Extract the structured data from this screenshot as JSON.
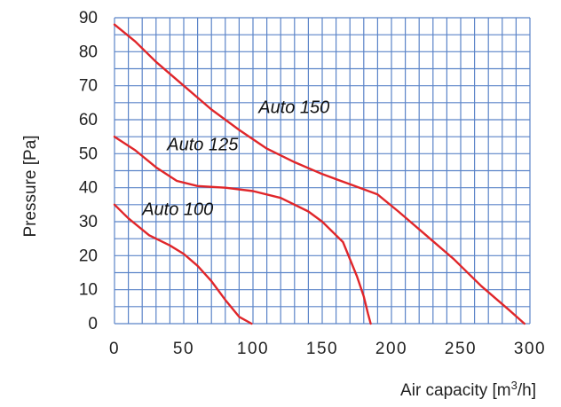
{
  "chart_data": {
    "type": "line",
    "title": "",
    "xlabel_prefix": "Air capacity [m",
    "xlabel_superscript": "3",
    "xlabel_suffix": "/h]",
    "ylabel": "Pressure [Pa]",
    "xlim": [
      0,
      300
    ],
    "ylim": [
      0,
      90
    ],
    "xticks": [
      0,
      50,
      100,
      150,
      200,
      250,
      300
    ],
    "yticks": [
      0,
      10,
      20,
      30,
      40,
      50,
      60,
      70,
      80,
      90
    ],
    "grid": true,
    "grid_minor_x_step": 10,
    "grid_y_step": 5,
    "grid_color": "#5b84c8",
    "line_color": "#e0262a",
    "series": [
      {
        "name": "Auto 100",
        "label_at": [
          20,
          32
        ],
        "points": [
          [
            0,
            35
          ],
          [
            10,
            31
          ],
          [
            25,
            26
          ],
          [
            40,
            23
          ],
          [
            50,
            20.5
          ],
          [
            60,
            17
          ],
          [
            70,
            12.5
          ],
          [
            80,
            7
          ],
          [
            90,
            2
          ],
          [
            99,
            0
          ]
        ]
      },
      {
        "name": "Auto 125",
        "label_at": [
          38,
          51
        ],
        "points": [
          [
            0,
            55
          ],
          [
            15,
            51
          ],
          [
            30,
            46
          ],
          [
            45,
            42
          ],
          [
            60,
            40.5
          ],
          [
            80,
            40
          ],
          [
            100,
            39
          ],
          [
            120,
            37
          ],
          [
            140,
            33
          ],
          [
            150,
            30
          ],
          [
            165,
            24
          ],
          [
            175,
            14
          ],
          [
            180,
            8
          ],
          [
            183,
            3
          ],
          [
            185,
            0
          ]
        ]
      },
      {
        "name": "Auto 150",
        "label_at": [
          104,
          62
        ],
        "points": [
          [
            0,
            88
          ],
          [
            15,
            83
          ],
          [
            30,
            77
          ],
          [
            50,
            70
          ],
          [
            70,
            63
          ],
          [
            90,
            57
          ],
          [
            110,
            51.5
          ],
          [
            130,
            47.5
          ],
          [
            150,
            44
          ],
          [
            170,
            41
          ],
          [
            190,
            38
          ],
          [
            205,
            33
          ],
          [
            225,
            26
          ],
          [
            245,
            19
          ],
          [
            265,
            11
          ],
          [
            285,
            4
          ],
          [
            296,
            0
          ]
        ]
      }
    ]
  }
}
